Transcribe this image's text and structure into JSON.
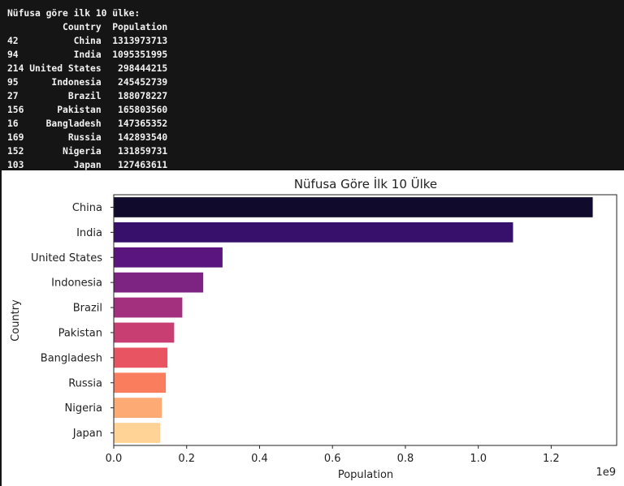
{
  "console": {
    "heading": "Nüfusa göre ilk 10 ülke:",
    "columns": [
      "Country",
      "Population"
    ],
    "rows": [
      {
        "index": "42",
        "country": "China",
        "population": "1313973713"
      },
      {
        "index": "94",
        "country": "India",
        "population": "1095351995"
      },
      {
        "index": "214",
        "country": "United States",
        "population": "298444215"
      },
      {
        "index": "95",
        "country": "Indonesia",
        "population": "245452739"
      },
      {
        "index": "27",
        "country": "Brazil",
        "population": "188078227"
      },
      {
        "index": "156",
        "country": "Pakistan",
        "population": "165803560"
      },
      {
        "index": "16",
        "country": "Bangladesh",
        "population": "147365352"
      },
      {
        "index": "169",
        "country": "Russia",
        "population": "142893540"
      },
      {
        "index": "152",
        "country": "Nigeria",
        "population": "131859731"
      },
      {
        "index": "103",
        "country": "Japan",
        "population": "127463611"
      }
    ]
  },
  "chart_data": {
    "type": "bar",
    "orientation": "horizontal",
    "title": "Nüfusa Göre İlk 10 Ülke",
    "xlabel": "Population",
    "ylabel": "Country",
    "offset_label": "1e9",
    "categories": [
      "China",
      "India",
      "United States",
      "Indonesia",
      "Brazil",
      "Pakistan",
      "Bangladesh",
      "Russia",
      "Nigeria",
      "Japan"
    ],
    "values": [
      1313973713,
      1095351995,
      298444215,
      245452739,
      188078227,
      165803560,
      147365352,
      142893540,
      131859731,
      127463611
    ],
    "xlim": [
      0,
      1379672399
    ],
    "xticks": [
      0.0,
      0.2,
      0.4,
      0.6,
      0.8,
      1.0,
      1.2
    ],
    "xtick_labels": [
      "0.0",
      "0.2",
      "0.4",
      "0.6",
      "0.8",
      "1.0",
      "1.2"
    ],
    "grid": false,
    "colors": [
      "#150e37",
      "#3b0f70",
      "#651a80",
      "#8c2981",
      "#b5367a",
      "#de4968",
      "#f7705c",
      "#fe9f6d",
      "#fecf92",
      "#fcefb2"
    ],
    "bar_colors": [
      "#100b2d",
      "#36106b",
      "#5a167e",
      "#7d2482",
      "#a3307e",
      "#c83e73",
      "#e95462",
      "#fa7d5e",
      "#feaa74",
      "#fed395"
    ]
  }
}
